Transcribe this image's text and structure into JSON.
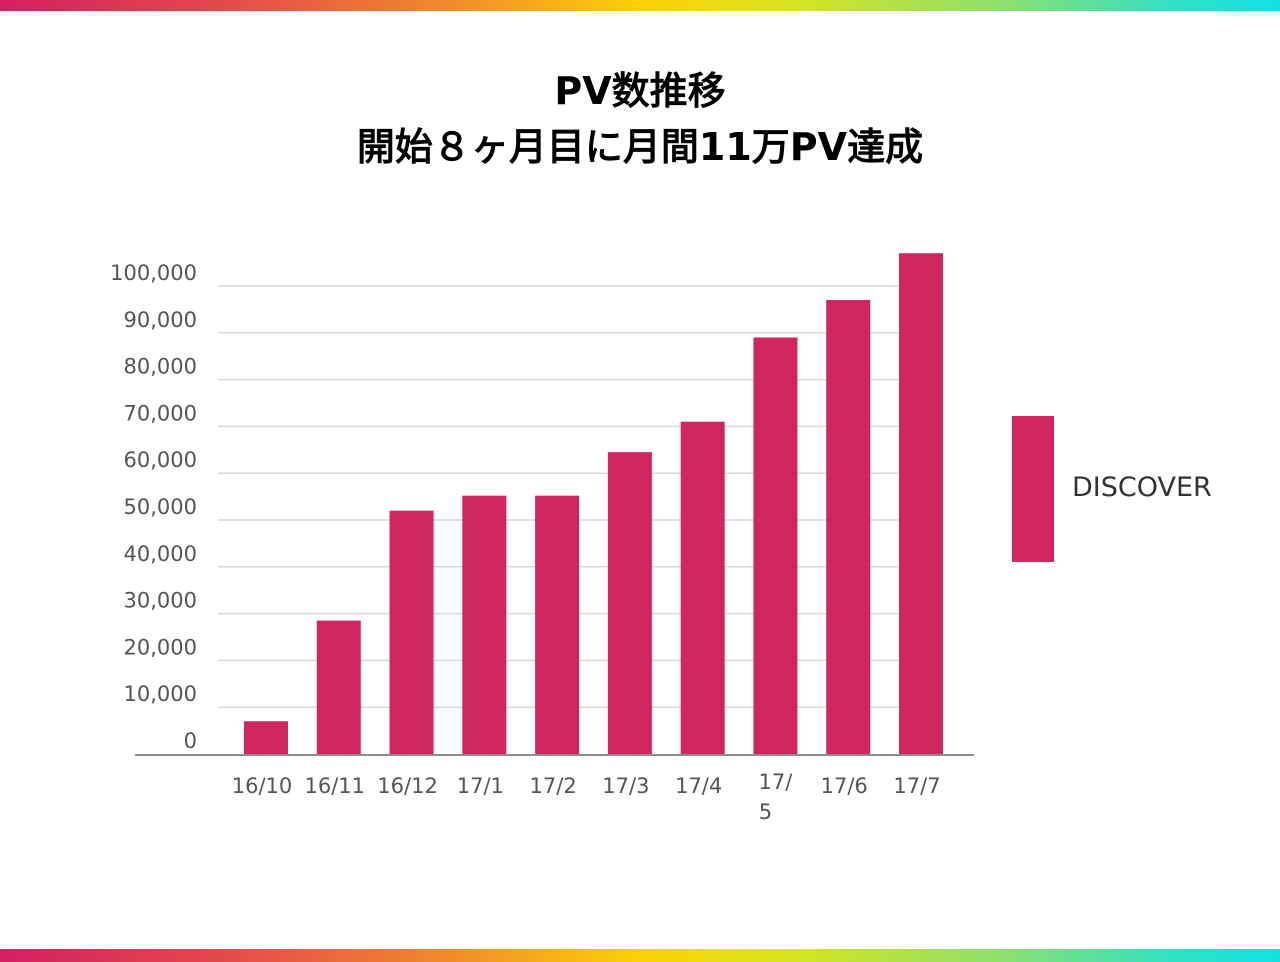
{
  "title_line1": "PV数推移",
  "title_line2": "開始８ヶ月目に月間11万PV達成",
  "colors": {
    "bar": "#cf2660",
    "grid": "#d9d9d9",
    "axis": "#8c8c8c",
    "tick": "#555555"
  },
  "chart_data": {
    "type": "bar",
    "categories": [
      "16/10",
      "16/11",
      "16/12",
      "17/1",
      "17/2",
      "17/3",
      "17/4",
      "17/5",
      "17/6",
      "17/7"
    ],
    "series": [
      {
        "name": "DISCOVER",
        "values": [
          7000,
          28500,
          52000,
          55200,
          55200,
          64500,
          71000,
          89000,
          97000,
          107000
        ]
      }
    ],
    "yticks": [
      "0",
      "10,000",
      "20,000",
      "30,000",
      "40,000",
      "50,000",
      "60,000",
      "70,000",
      "80,000",
      "90,000",
      "100,000"
    ],
    "ylim": [
      0,
      107000
    ],
    "grid": true,
    "legend_position": "right"
  }
}
